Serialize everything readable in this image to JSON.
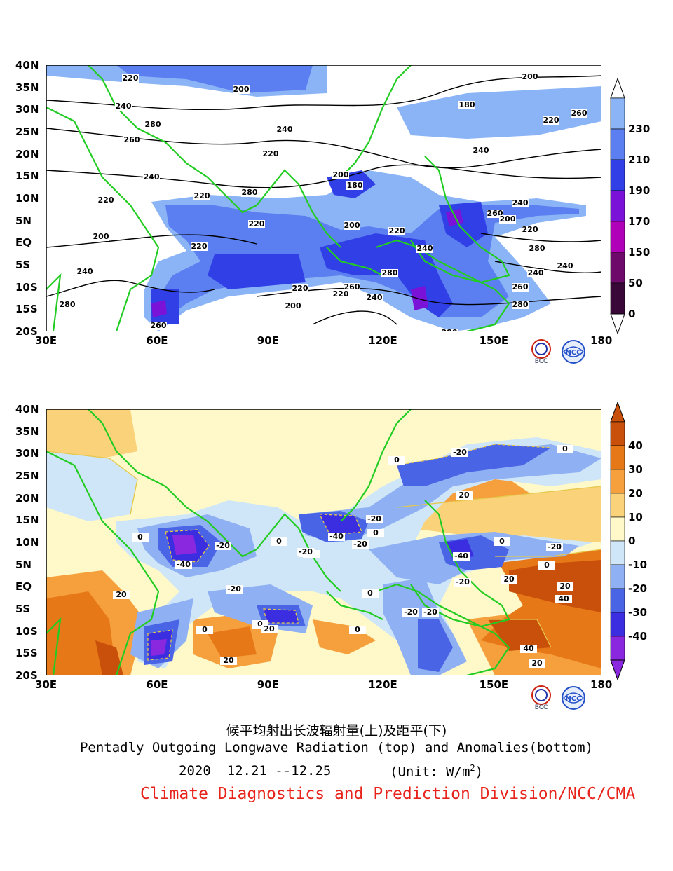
{
  "top_panel": {
    "lat_labels": [
      "40N",
      "35N",
      "30N",
      "25N",
      "20N",
      "15N",
      "10N",
      "5N",
      "EQ",
      "5S",
      "10S",
      "15S",
      "20S"
    ],
    "lon_labels": [
      "30E",
      "60E",
      "90E",
      "120E",
      "150E",
      "180"
    ],
    "colorbar": {
      "labels": [
        "230",
        "210",
        "190",
        "170",
        "150",
        "50",
        "0"
      ],
      "colors": [
        "#8ab4f5",
        "#5b7ef0",
        "#3040e6",
        "#7a12d8",
        "#b000b8",
        "#6e0a6a",
        "#3a0838"
      ]
    },
    "contour_labels": [
      "220",
      "200",
      "240",
      "280",
      "260",
      "240",
      "220",
      "180",
      "200",
      "220",
      "260",
      "240",
      "220",
      "280",
      "220",
      "200",
      "180",
      "200",
      "220",
      "240",
      "280",
      "260",
      "220",
      "200",
      "220",
      "240",
      "280",
      "260",
      "200",
      "220",
      "240",
      "280",
      "240",
      "260",
      "280",
      "240",
      "220",
      "200",
      "240",
      "280",
      "260",
      "220",
      "240"
    ]
  },
  "bottom_panel": {
    "lat_labels": [
      "40N",
      "35N",
      "30N",
      "25N",
      "20N",
      "15N",
      "10N",
      "5N",
      "EQ",
      "5S",
      "10S",
      "15S",
      "20S"
    ],
    "lon_labels": [
      "30E",
      "60E",
      "90E",
      "120E",
      "150E",
      "180"
    ],
    "colorbar": {
      "labels": [
        "40",
        "30",
        "20",
        "10",
        "0",
        "-10",
        "-20",
        "-30",
        "-40"
      ],
      "colors": [
        "#c8500a",
        "#e67818",
        "#f5a03c",
        "#fad27a",
        "#fff8c8",
        "#cfe6f8",
        "#8fb0f2",
        "#4a64e6",
        "#3a2ee0",
        "#8a28e0"
      ]
    },
    "contour_labels": [
      "0",
      "-20",
      "0",
      "-20",
      "-20",
      "20",
      "0",
      "-40",
      "-20",
      "0",
      "0",
      "-20",
      "-40",
      "-20",
      "0",
      "-20",
      "0",
      "-20",
      "0",
      "20",
      "0",
      "-20",
      "-40",
      "-20",
      "0",
      "20",
      "0",
      "-20",
      "20",
      "40",
      "40",
      "20",
      "0",
      "20",
      "20"
    ]
  },
  "logos": [
    "BCC",
    "NCC"
  ],
  "title_cn": "候平均射出长波辐射量(上)及距平(下)",
  "title_en": "Pentadly Outgoing Longwave Radiation (top) and Anomalies(bottom)",
  "date_range": "2020  12.21 --12.25",
  "unit_prefix": "(Unit: W/m",
  "unit_exp": "2",
  "unit_suffix": ")",
  "credit": "Climate Diagnostics and Prediction Division/NCC/CMA"
}
